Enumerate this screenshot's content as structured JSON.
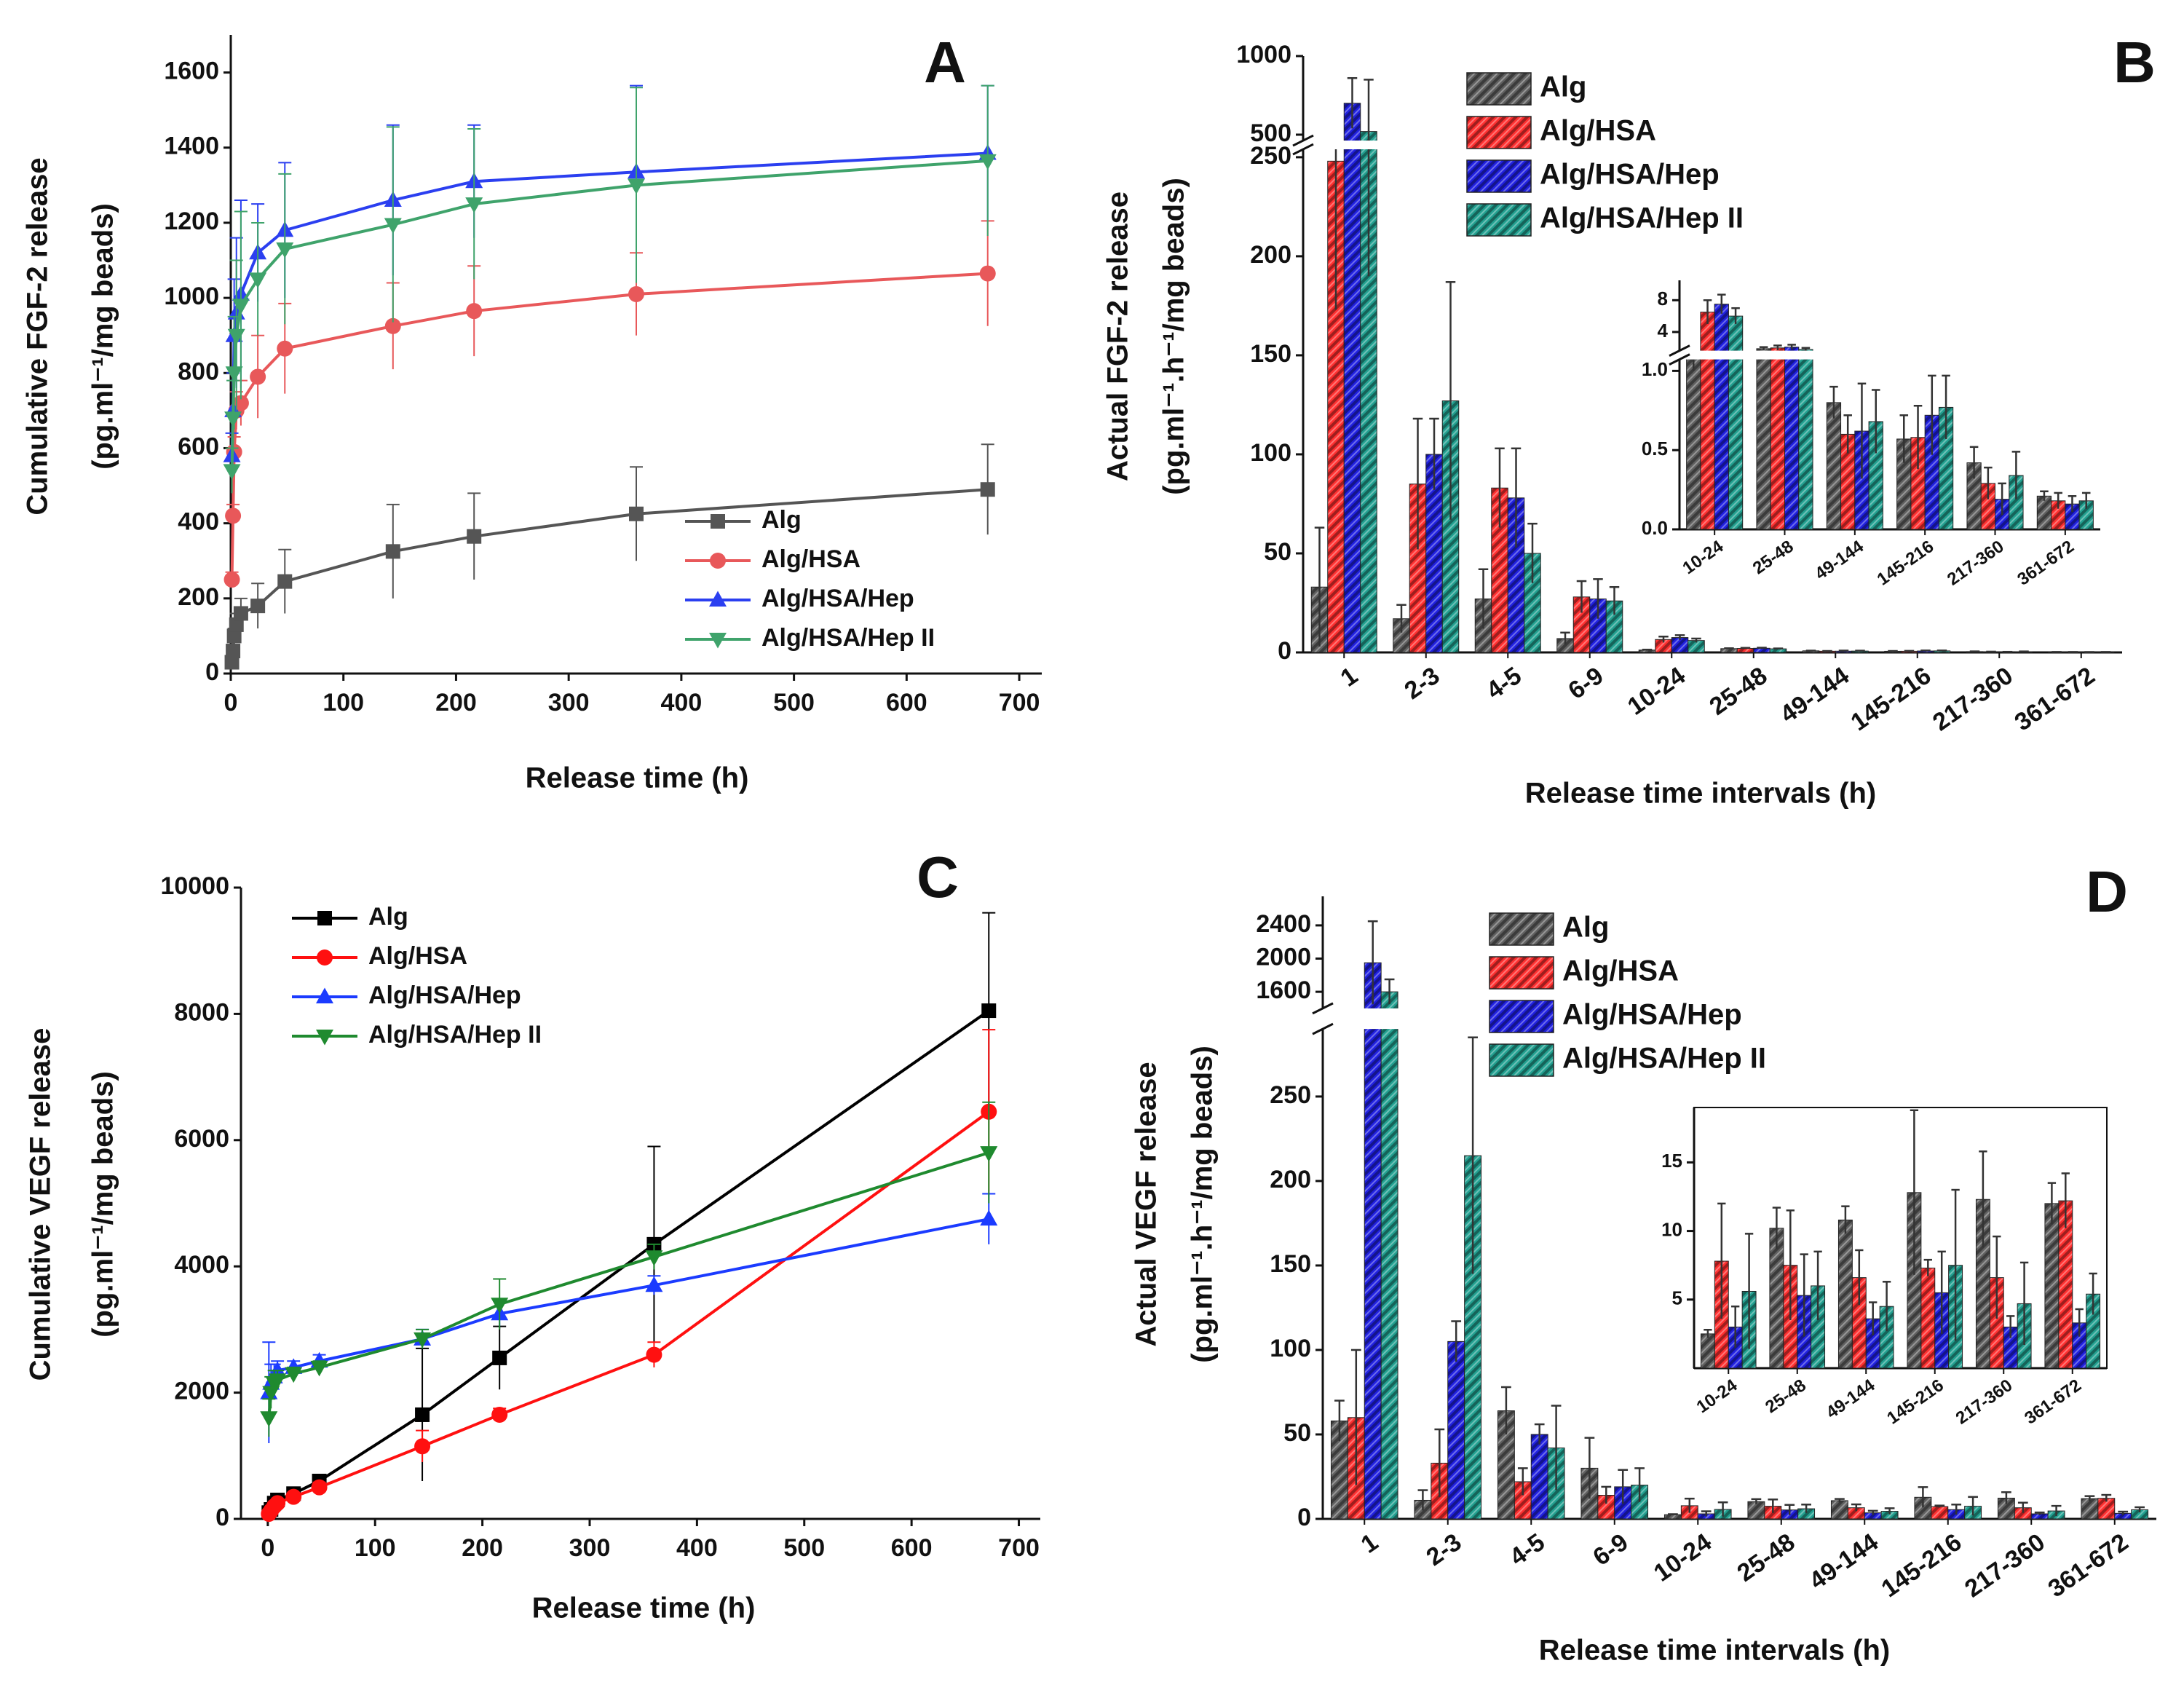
{
  "chart_data": [
    {
      "type": "line",
      "title": "A",
      "xlabel": "Release time (h)",
      "ylabel": [
        "Cumulative FGF-2 release",
        "(pg.ml⁻¹/mg beads)"
      ],
      "x": [
        1,
        2,
        3,
        5,
        9,
        24,
        48,
        144,
        216,
        360,
        672
      ],
      "xlim": [
        0,
        720
      ],
      "xticks": [
        0,
        100,
        200,
        300,
        400,
        500,
        600,
        700
      ],
      "ylim": [
        0,
        1700
      ],
      "yticks": [
        0,
        200,
        400,
        600,
        800,
        1000,
        1200,
        1400,
        1600
      ],
      "legend": "lower right",
      "series": [
        {
          "name": "Alg",
          "color": "#555555",
          "marker": "square",
          "values": [
            30,
            60,
            100,
            130,
            160,
            180,
            245,
            325,
            365,
            425,
            490
          ],
          "errors": [
            10,
            15,
            20,
            30,
            40,
            60,
            85,
            125,
            115,
            125,
            120
          ]
        },
        {
          "name": "Alg/HSA",
          "color": "#e8585a",
          "marker": "circle",
          "values": [
            250,
            420,
            590,
            700,
            720,
            790,
            865,
            925,
            965,
            1010,
            1065
          ],
          "errors": [
            20,
            30,
            40,
            50,
            60,
            110,
            120,
            115,
            120,
            110,
            140
          ]
        },
        {
          "name": "Alg/HSA/Hep",
          "color": "#2b3ff0",
          "marker": "triangle-up",
          "values": [
            580,
            700,
            900,
            960,
            1010,
            1120,
            1180,
            1260,
            1310,
            1335,
            1385
          ],
          "errors": [
            60,
            100,
            150,
            200,
            250,
            130,
            180,
            200,
            150,
            230,
            180
          ]
        },
        {
          "name": "Alg/HSA/Hep II",
          "color": "#3fa36b",
          "marker": "triangle-down",
          "values": [
            540,
            680,
            800,
            900,
            980,
            1050,
            1130,
            1195,
            1250,
            1300,
            1365
          ],
          "errors": [
            60,
            100,
            150,
            200,
            250,
            150,
            200,
            260,
            200,
            260,
            200
          ]
        }
      ]
    },
    {
      "type": "bar",
      "title": "B",
      "xlabel": "Release time intervals (h)",
      "ylabel": [
        "Actual FGF-2 release",
        "(pg.ml⁻¹.h⁻¹/mg beads)"
      ],
      "categories": [
        "1",
        "2-3",
        "4-5",
        "6-9",
        "10-24",
        "25-48",
        "49-144",
        "145-216",
        "217-360",
        "361-672"
      ],
      "y_segments": [
        {
          "ylim": [
            0,
            255
          ],
          "yticks": [
            0,
            50,
            100,
            150,
            200,
            250
          ]
        },
        {
          "ylim": [
            450,
            1000
          ],
          "yticks": [
            500,
            1000
          ]
        }
      ],
      "legend": "upper center",
      "series": [
        {
          "name": "Alg",
          "color": "#606060",
          "values": [
            33,
            17,
            27,
            7,
            1.2,
            1.9,
            0.8,
            0.57,
            0.42,
            0.21
          ],
          "errors": [
            30,
            7,
            15,
            3,
            0.2,
            0.2,
            0.1,
            0.15,
            0.1,
            0.03
          ]
        },
        {
          "name": "Alg/HSA",
          "color": "#ff3030",
          "values": [
            248,
            85,
            83,
            28,
            6.5,
            2.0,
            0.6,
            0.58,
            0.29,
            0.18
          ],
          "errors": [
            75,
            33,
            20,
            8,
            1.5,
            0.3,
            0.12,
            0.2,
            0.1,
            0.05
          ]
        },
        {
          "name": "Alg/HSA/Hep",
          "color": "#2020e0",
          "values": [
            700,
            100,
            78,
            27,
            7.5,
            2.1,
            0.62,
            0.72,
            0.19,
            0.16
          ],
          "errors": [
            160,
            18,
            25,
            10,
            1.2,
            0.3,
            0.3,
            0.25,
            0.1,
            0.05
          ]
        },
        {
          "name": "Alg/HSA/Hep II",
          "color": "#22a090",
          "values": [
            520,
            127,
            50,
            26,
            6,
            1.8,
            0.68,
            0.77,
            0.34,
            0.18
          ],
          "errors": [
            330,
            60,
            15,
            7,
            1,
            0.2,
            0.2,
            0.2,
            0.15,
            0.05
          ]
        }
      ],
      "inset": {
        "categories": [
          "10-24",
          "25-48",
          "49-144",
          "145-216",
          "217-360",
          "361-672"
        ],
        "y_segments": [
          {
            "ylim": [
              0,
              1.1
            ],
            "yticks": [
              {
                "value": 0,
                "label": "0.0"
              },
              0.5,
              {
                "value": 1,
                "label": "1.0"
              }
            ]
          },
          {
            "ylim": [
              1.1,
              10.5
            ],
            "yticks": [
              4,
              8
            ]
          }
        ],
        "series": [
          {
            "values": [
              1.2,
              1.9,
              0.8,
              0.57,
              0.42,
              0.21
            ],
            "errors": [
              0.2,
              0.2,
              0.1,
              0.15,
              0.1,
              0.03
            ]
          },
          {
            "values": [
              6.5,
              2.0,
              0.6,
              0.58,
              0.29,
              0.18
            ],
            "errors": [
              1.5,
              0.3,
              0.12,
              0.2,
              0.1,
              0.05
            ]
          },
          {
            "values": [
              7.5,
              2.1,
              0.62,
              0.72,
              0.19,
              0.16
            ],
            "errors": [
              1.2,
              0.3,
              0.3,
              0.25,
              0.1,
              0.05
            ]
          },
          {
            "values": [
              6,
              1.8,
              0.68,
              0.77,
              0.34,
              0.18
            ],
            "errors": [
              1,
              0.2,
              0.2,
              0.2,
              0.15,
              0.05
            ]
          }
        ]
      }
    },
    {
      "type": "line",
      "title": "C",
      "xlabel": "Release time (h)",
      "ylabel": [
        "Cumulative VEGF release",
        "(pg.ml⁻¹/mg beads)"
      ],
      "x": [
        1,
        3,
        6,
        9,
        24,
        48,
        144,
        216,
        360,
        672
      ],
      "xlim": [
        -25,
        720
      ],
      "xticks": [
        0,
        100,
        200,
        300,
        400,
        500,
        600,
        700
      ],
      "ylim": [
        0,
        10000
      ],
      "yticks": [
        0,
        2000,
        4000,
        6000,
        8000,
        10000
      ],
      "legend": "upper left",
      "series": [
        {
          "name": "Alg",
          "color": "#000000",
          "marker": "square",
          "values": [
            100,
            150,
            250,
            300,
            400,
            600,
            1650,
            2550,
            4350,
            8050
          ],
          "errors": [
            20,
            30,
            40,
            50,
            60,
            80,
            1050,
            500,
            1550,
            1550
          ]
        },
        {
          "name": "Alg/HSA",
          "color": "#ff1010",
          "marker": "circle",
          "values": [
            80,
            130,
            200,
            250,
            350,
            500,
            1150,
            1650,
            2600,
            6450
          ],
          "errors": [
            20,
            30,
            40,
            50,
            60,
            80,
            250,
            100,
            200,
            1300
          ]
        },
        {
          "name": "Alg/HSA/Hep",
          "color": "#1b3bff",
          "marker": "triangle-up",
          "values": [
            2000,
            2150,
            2250,
            2350,
            2400,
            2500,
            2850,
            3250,
            3700,
            4750
          ],
          "errors": [
            800,
            300,
            200,
            150,
            100,
            100,
            150,
            200,
            150,
            400
          ]
        },
        {
          "name": "Alg/HSA/Hep II",
          "color": "#1f8a2f",
          "marker": "triangle-down",
          "values": [
            1600,
            2000,
            2150,
            2200,
            2300,
            2400,
            2850,
            3400,
            4150,
            5800
          ],
          "errors": [
            300,
            250,
            200,
            150,
            100,
            100,
            150,
            400,
            200,
            800
          ]
        }
      ]
    },
    {
      "type": "bar",
      "title": "D",
      "xlabel": "Release time intervals (h)",
      "ylabel": [
        "Actual VEGF release",
        "(pg.ml⁻¹.h⁻¹/mg beads)"
      ],
      "categories": [
        "1",
        "2-3",
        "4-5",
        "6-9",
        "10-24",
        "25-48",
        "49-144",
        "145-216",
        "217-360",
        "361-672"
      ],
      "y_segments": [
        {
          "ylim": [
            0,
            290
          ],
          "yticks": [
            0,
            50,
            100,
            150,
            200,
            250
          ]
        },
        {
          "ylim": [
            1400,
            2750
          ],
          "yticks": [
            1600,
            2000,
            2400
          ]
        }
      ],
      "legend": "upper center",
      "series": [
        {
          "name": "Alg",
          "color": "#606060",
          "values": [
            58,
            11,
            64,
            30,
            2.5,
            10.2,
            10.8,
            12.8,
            12.3,
            12
          ],
          "errors": [
            12,
            6,
            14,
            18,
            0.3,
            1.5,
            1,
            6,
            3.5,
            1.5
          ]
        },
        {
          "name": "Alg/HSA",
          "color": "#ff3030",
          "values": [
            60,
            33,
            22,
            14,
            7.8,
            7.5,
            6.6,
            7.3,
            6.6,
            12.2
          ],
          "errors": [
            40,
            20,
            8,
            5,
            4.2,
            4,
            2,
            0.6,
            3,
            2
          ]
        },
        {
          "name": "Alg/HSA/Hep",
          "color": "#2020e0",
          "values": [
            1950,
            105,
            50,
            19,
            3,
            5.3,
            3.6,
            5.5,
            3,
            3.3
          ],
          "errors": [
            500,
            12,
            6,
            10,
            1.5,
            3,
            1.2,
            3,
            0.8,
            1
          ]
        },
        {
          "name": "Alg/HSA/Hep II",
          "color": "#22a090",
          "values": [
            1600,
            215,
            42,
            20,
            5.6,
            6,
            4.5,
            7.5,
            4.7,
            5.4
          ],
          "errors": [
            150,
            70,
            25,
            10,
            4.2,
            2.5,
            1.8,
            5.5,
            3,
            1.5
          ]
        }
      ],
      "inset": {
        "categories": [
          "10-24",
          "25-48",
          "49-144",
          "145-216",
          "217-360",
          "361-672"
        ],
        "ylim": [
          0,
          19
        ],
        "yticks": [
          5,
          10,
          15
        ],
        "series": [
          {
            "values": [
              2.5,
              10.2,
              10.8,
              12.8,
              12.3,
              12
            ],
            "errors": [
              0.3,
              1.5,
              1,
              6,
              3.5,
              1.5
            ]
          },
          {
            "values": [
              7.8,
              7.5,
              6.6,
              7.3,
              6.6,
              12.2
            ],
            "errors": [
              4.2,
              4,
              2,
              0.6,
              3,
              2
            ]
          },
          {
            "values": [
              3,
              5.3,
              3.6,
              5.5,
              3,
              3.3
            ],
            "errors": [
              1.5,
              3,
              1.2,
              3,
              0.8,
              1
            ]
          },
          {
            "values": [
              5.6,
              6,
              4.5,
              7.5,
              4.7,
              5.4
            ],
            "errors": [
              4.2,
              2.5,
              1.8,
              5.5,
              3,
              1.5
            ]
          }
        ]
      }
    }
  ]
}
